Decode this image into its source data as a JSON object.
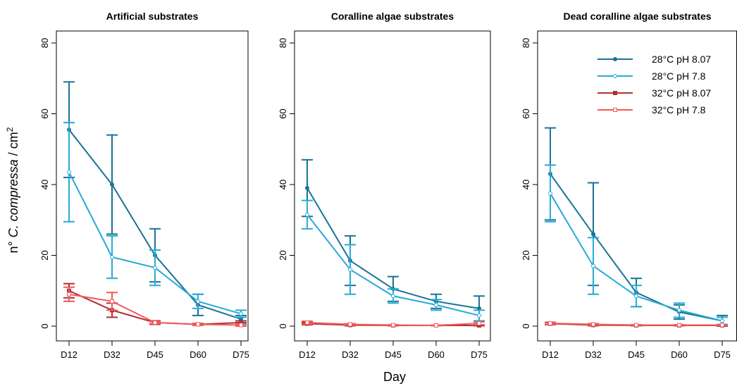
{
  "figure": {
    "xlabel": "Day",
    "ylabel_prefix": "n° ",
    "ylabel_italic": "C. compressa",
    "ylabel_suffix": " / cm",
    "ylabel_sup": "2"
  },
  "chart_data": [
    {
      "type": "line",
      "title": "Artificial substrates",
      "categories": [
        "D12",
        "D32",
        "D45",
        "D60",
        "D75"
      ],
      "ylim": [
        0,
        80
      ],
      "yticks": [
        0,
        20,
        40,
        60,
        80
      ],
      "series": [
        {
          "name": "28°C pH 8.07",
          "values": [
            55.5,
            40.0,
            20.0,
            6.0,
            2.0
          ],
          "err": [
            13.5,
            14.0,
            7.5,
            3.0,
            1.0
          ]
        },
        {
          "name": "28°C pH 7.8",
          "values": [
            43.5,
            19.5,
            16.5,
            7.0,
            3.5
          ],
          "err": [
            14.0,
            6.0,
            5.0,
            2.0,
            1.0
          ]
        },
        {
          "name": "32°C pH 8.07",
          "values": [
            10.0,
            4.5,
            1.0,
            0.5,
            1.0
          ],
          "err": [
            2.0,
            2.0,
            0.5,
            0.3,
            0.5
          ]
        },
        {
          "name": "32°C pH 7.8",
          "values": [
            9.0,
            7.0,
            1.0,
            0.5,
            0.3
          ],
          "err": [
            2.0,
            2.5,
            0.3,
            0.3,
            0.3
          ]
        }
      ]
    },
    {
      "type": "line",
      "title": "Coralline algae substrates",
      "categories": [
        "D12",
        "D32",
        "D45",
        "D60",
        "D75"
      ],
      "ylim": [
        0,
        80
      ],
      "yticks": [
        0,
        20,
        40,
        60,
        80
      ],
      "series": [
        {
          "name": "28°C pH 8.07",
          "values": [
            39.0,
            18.5,
            10.5,
            7.0,
            5.0
          ],
          "err": [
            8.0,
            7.0,
            3.5,
            2.0,
            3.5
          ]
        },
        {
          "name": "28°C pH 7.8",
          "values": [
            31.5,
            16.0,
            8.5,
            6.0,
            3.0
          ],
          "err": [
            4.0,
            7.0,
            2.0,
            1.5,
            1.5
          ]
        },
        {
          "name": "32°C pH 8.07",
          "values": [
            0.7,
            0.3,
            0.2,
            0.2,
            0.2
          ],
          "err": [
            0.3,
            0.2,
            0.1,
            0.1,
            0.1
          ]
        },
        {
          "name": "32°C pH 7.8",
          "values": [
            1.0,
            0.5,
            0.3,
            0.2,
            0.8
          ],
          "err": [
            0.4,
            0.2,
            0.1,
            0.1,
            0.4
          ]
        }
      ]
    },
    {
      "type": "line",
      "title": "Dead coralline algae substrates",
      "categories": [
        "D12",
        "D32",
        "D45",
        "D60",
        "D75"
      ],
      "ylim": [
        0,
        80
      ],
      "yticks": [
        0,
        20,
        40,
        60,
        80
      ],
      "series": [
        {
          "name": "28°C pH 8.07",
          "values": [
            43.0,
            26.0,
            9.5,
            4.0,
            1.5
          ],
          "err": [
            13.0,
            14.5,
            4.0,
            2.0,
            1.5
          ]
        },
        {
          "name": "28°C pH 7.8",
          "values": [
            37.5,
            17.0,
            8.5,
            4.5,
            1.5
          ],
          "err": [
            8.0,
            8.0,
            3.0,
            2.0,
            1.0
          ]
        },
        {
          "name": "32°C pH 8.07",
          "values": [
            0.7,
            0.3,
            0.2,
            0.2,
            0.2
          ],
          "err": [
            0.3,
            0.2,
            0.1,
            0.1,
            0.1
          ]
        },
        {
          "name": "32°C pH 7.8",
          "values": [
            0.8,
            0.5,
            0.3,
            0.3,
            0.3
          ],
          "err": [
            0.3,
            0.2,
            0.1,
            0.1,
            0.1
          ]
        }
      ],
      "legend": {
        "placement": "top-right"
      }
    }
  ],
  "style": {
    "series_colors": [
      "#1a7394",
      "#27aad8",
      "#b22e35",
      "#f05a5a"
    ],
    "series_markers": [
      "filled-circle",
      "open-circle",
      "filled-square",
      "open-square"
    ]
  }
}
